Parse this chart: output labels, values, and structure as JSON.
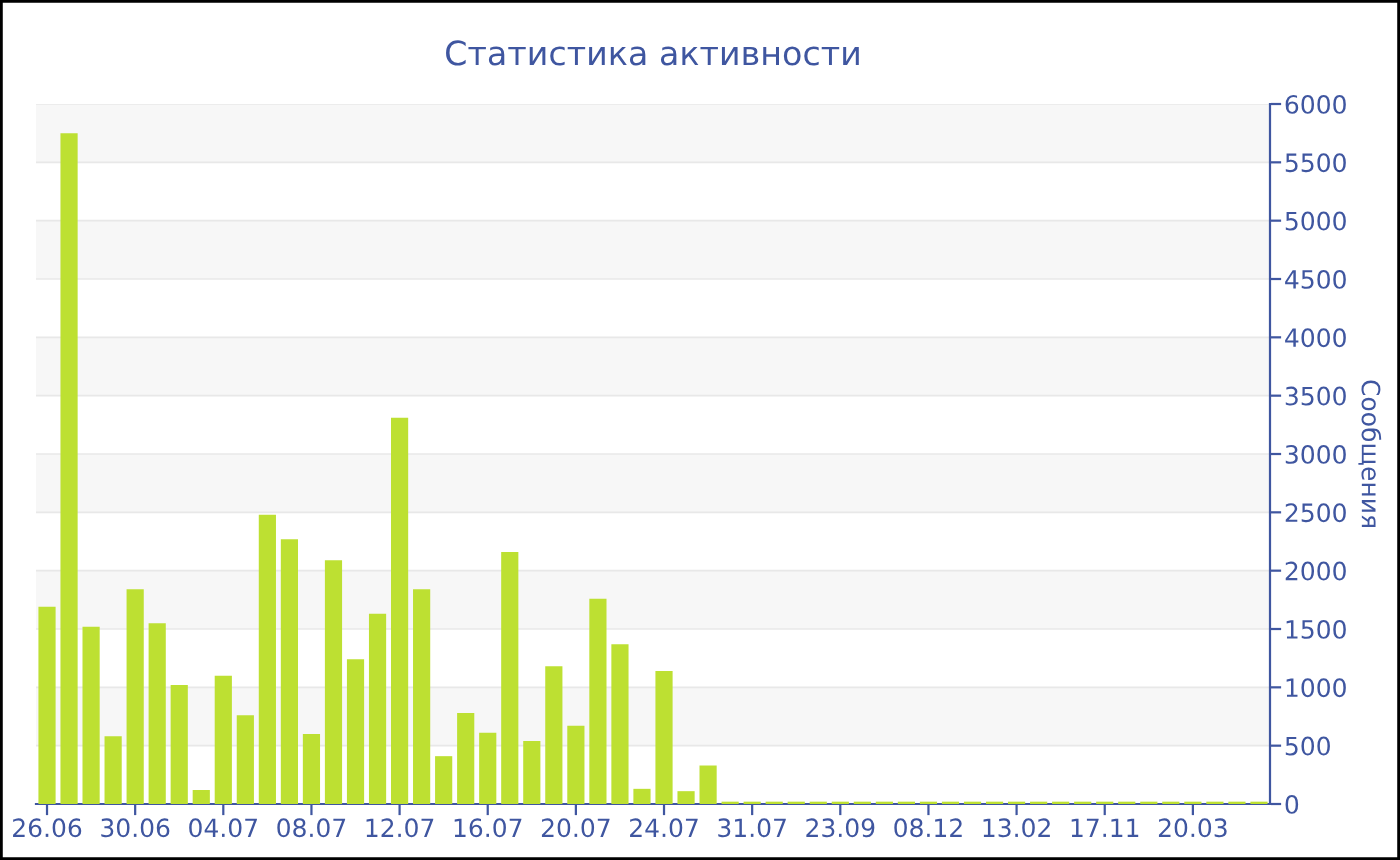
{
  "chart_data": {
    "type": "bar",
    "title": "Статистика активности",
    "ylabel": "Сообщения",
    "categories": [
      "26.06",
      null,
      null,
      null,
      "30.06",
      null,
      null,
      null,
      "04.07",
      null,
      null,
      null,
      "08.07",
      null,
      null,
      null,
      "12.07",
      null,
      null,
      null,
      "16.07",
      null,
      null,
      null,
      "20.07",
      null,
      null,
      null,
      "24.07",
      null,
      null,
      null,
      "31.07",
      null,
      null,
      null,
      "23.09",
      null,
      null,
      null,
      "08.12",
      null,
      null,
      null,
      "13.02",
      null,
      null,
      null,
      "17.11",
      null,
      null,
      null,
      "20.03",
      null,
      null,
      null
    ],
    "values": [
      1690,
      5750,
      1520,
      580,
      1840,
      1550,
      1020,
      120,
      1100,
      760,
      2480,
      2270,
      600,
      2090,
      1240,
      1630,
      3310,
      1840,
      410,
      780,
      610,
      2160,
      540,
      1180,
      670,
      1760,
      1370,
      130,
      1140,
      110,
      330,
      20,
      20,
      20,
      20,
      20,
      20,
      20,
      20,
      20,
      20,
      20,
      20,
      20,
      20,
      20,
      20,
      20,
      20,
      20,
      20,
      20,
      20,
      20,
      20,
      20
    ],
    "color": "#bde032",
    "ylim": [
      0,
      6000
    ],
    "yticks": [
      0,
      500,
      1000,
      1500,
      2000,
      2500,
      3000,
      3500,
      4000,
      4500,
      5000,
      5500,
      6000
    ],
    "grid": "y",
    "legend": false
  }
}
